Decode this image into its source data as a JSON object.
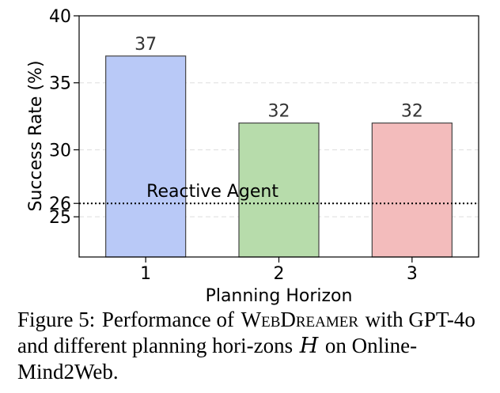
{
  "chart_data": {
    "type": "bar",
    "categories": [
      "1",
      "2",
      "3"
    ],
    "values": [
      37,
      32,
      32
    ],
    "data_labels": [
      "37",
      "32",
      "32"
    ],
    "bar_colors": [
      "#b9c9f7",
      "#b7dcab",
      "#f3bcbc"
    ],
    "bar_edge_color": "#444444",
    "title": "",
    "xlabel": "Planning Horizon",
    "ylabel": "Success Rate (%)",
    "ylim": [
      22,
      40
    ],
    "yticks": [
      25,
      26,
      30,
      35,
      40
    ],
    "grid": "y-dashed",
    "reference_line": {
      "value": 26,
      "label": "Reactive Agent",
      "style": "dotted",
      "color": "#000000"
    }
  },
  "caption": {
    "label": "Figure 5:",
    "before_model": "Performance of",
    "model": "WebDreamer",
    "after_model": "with GPT-4o and different planning hori-zons",
    "variable": "H",
    "end": "on Online-Mind2Web."
  }
}
